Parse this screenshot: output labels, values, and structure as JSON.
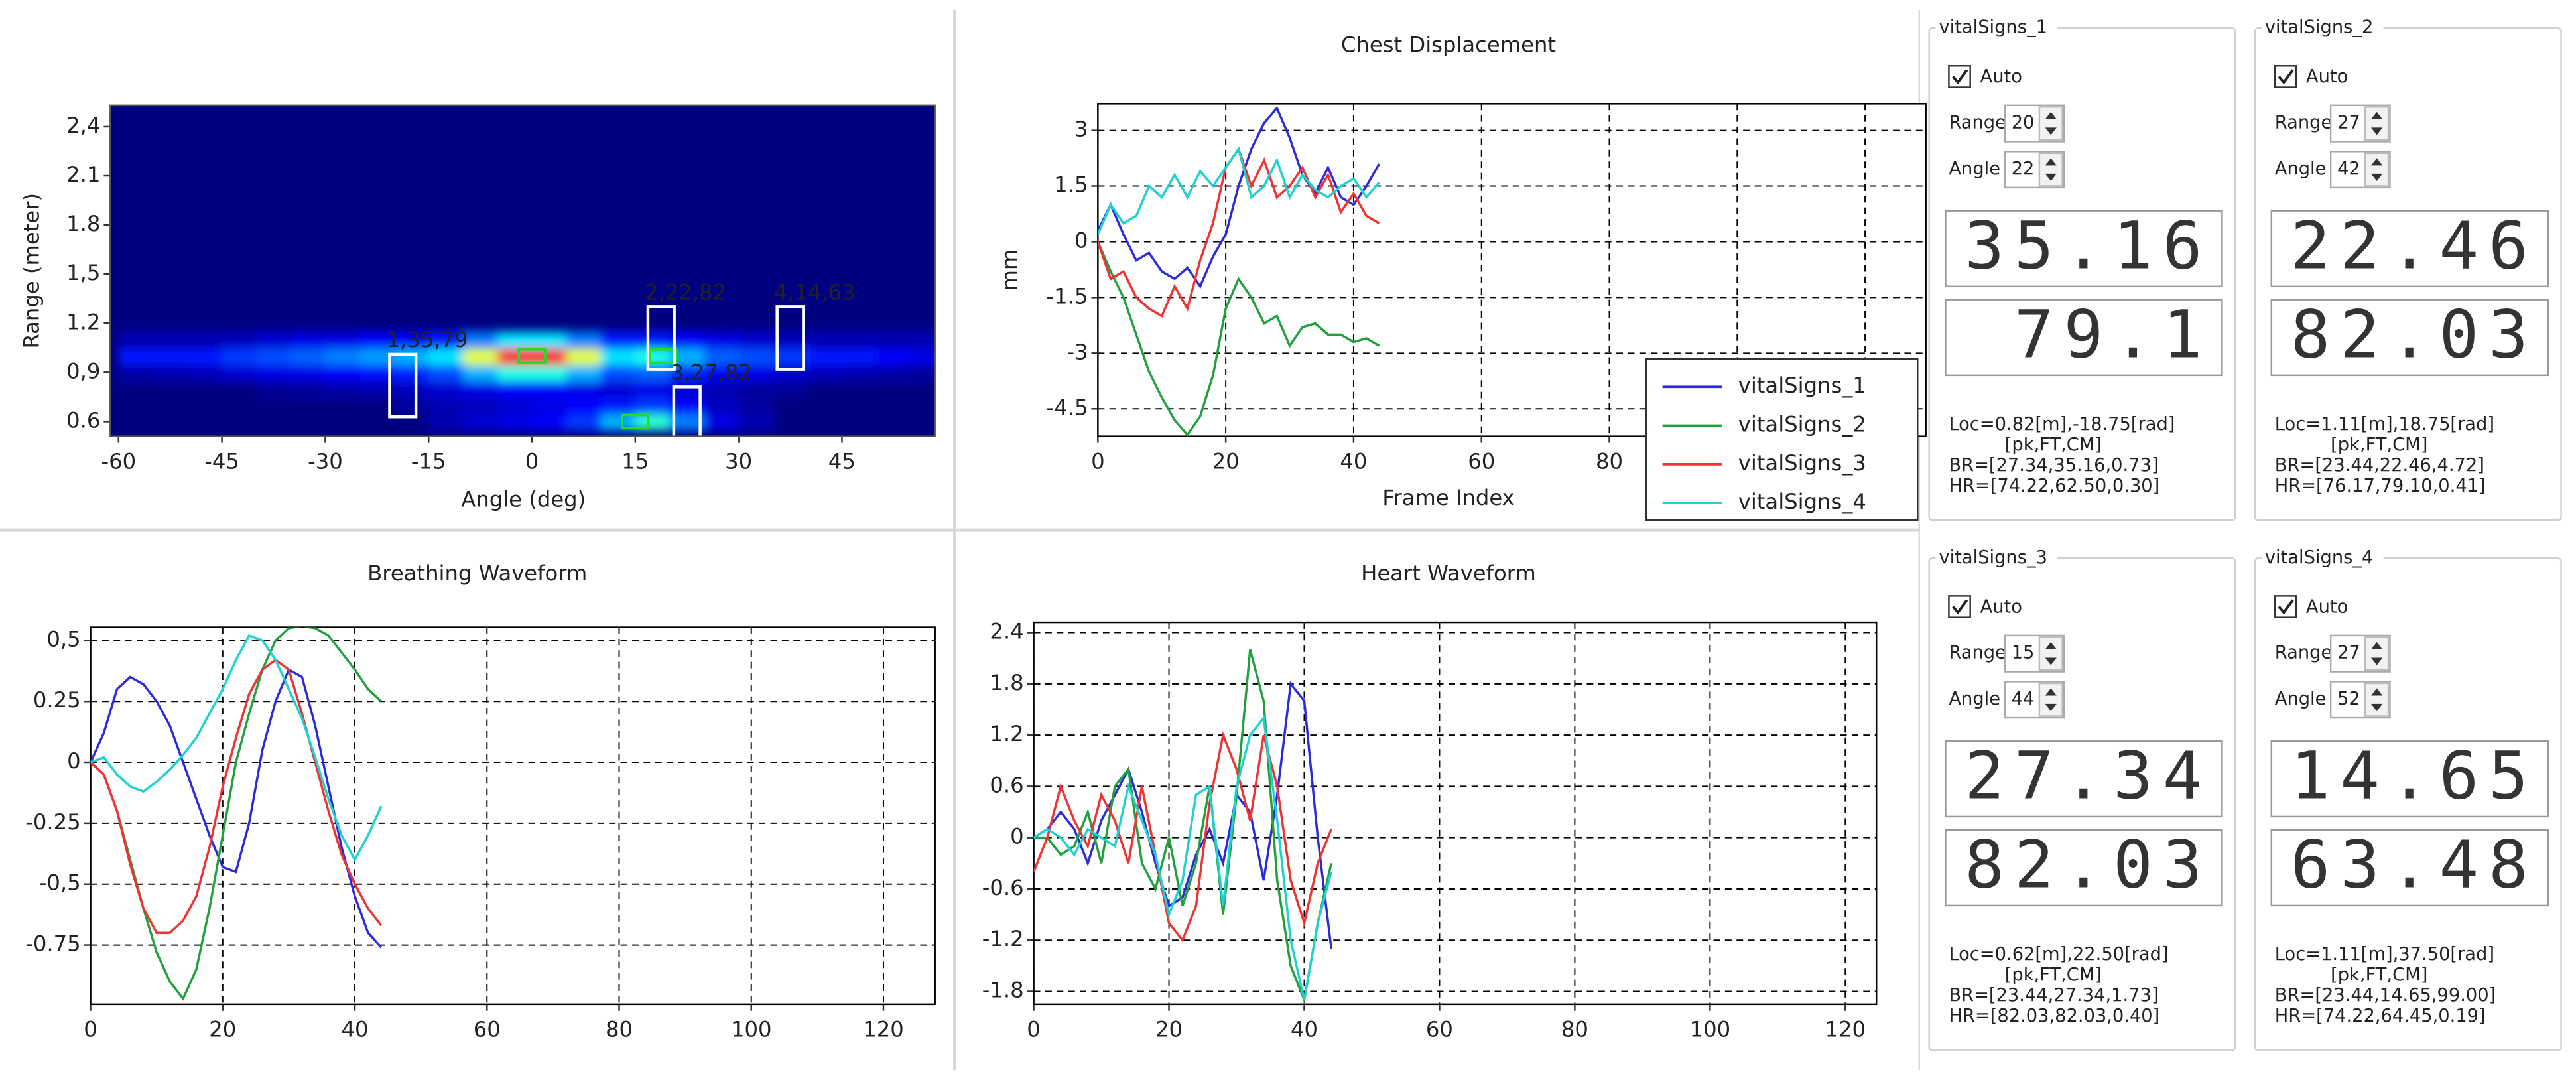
{
  "chart_data": [
    {
      "type": "heatmap",
      "xlabel": "Angle (deg)",
      "ylabel": "Range (meter)",
      "grid": false,
      "xlim": [
        -61.2,
        58.5
      ],
      "ylim": [
        0.51,
        2.53
      ],
      "xticks": [
        -60,
        -45,
        -30,
        -15,
        0,
        15,
        30,
        45
      ],
      "yticks": [
        {
          "value": 2.4,
          "label": "2,4"
        },
        2.1,
        1.8,
        {
          "value": 1.5,
          "label": "1,5"
        },
        1.2,
        {
          "value": 0.9,
          "label": "0,9"
        },
        0.6
      ],
      "x": [
        -57.5,
        -52.5,
        -47.5,
        -42.5,
        -37.5,
        -32.5,
        -27.5,
        -22.5,
        -17.5,
        -12.5,
        -7.5,
        -2.5,
        2.5,
        7.5,
        12.5,
        17.5,
        22.5,
        27.5,
        32.5,
        37.5,
        42.5,
        47.5,
        52.5,
        57.5
      ],
      "y": [
        0.6,
        0.7,
        0.8,
        0.9,
        1.0,
        1.1
      ],
      "z": [
        [
          0,
          0,
          0,
          0,
          0,
          0,
          0,
          0,
          0,
          0.05,
          0.08,
          0.1,
          0.12,
          0.18,
          0.3,
          0.42,
          0.25,
          0.1,
          0.05,
          0,
          0,
          0,
          0,
          0
        ],
        [
          0,
          0,
          0,
          0,
          0,
          0,
          0,
          0,
          0.03,
          0.05,
          0.06,
          0.08,
          0.1,
          0.12,
          0.15,
          0.18,
          0.12,
          0.06,
          0.03,
          0,
          0,
          0,
          0,
          0
        ],
        [
          0,
          0,
          0,
          0,
          0.02,
          0.03,
          0.04,
          0.05,
          0.06,
          0.08,
          0.1,
          0.12,
          0.12,
          0.1,
          0.08,
          0.1,
          0.08,
          0.05,
          0.03,
          0.02,
          0,
          0,
          0,
          0
        ],
        [
          0.04,
          0.05,
          0.06,
          0.08,
          0.1,
          0.1,
          0.12,
          0.14,
          0.16,
          0.2,
          0.3,
          0.4,
          0.4,
          0.3,
          0.2,
          0.22,
          0.16,
          0.12,
          0.1,
          0.08,
          0.06,
          0.05,
          0.04,
          0.03
        ],
        [
          0.15,
          0.15,
          0.15,
          0.18,
          0.2,
          0.22,
          0.25,
          0.28,
          0.3,
          0.35,
          0.6,
          0.85,
          0.85,
          0.6,
          0.35,
          0.4,
          0.3,
          0.22,
          0.2,
          0.18,
          0.15,
          0.15,
          0.12,
          0.1
        ],
        [
          0.05,
          0.05,
          0.05,
          0.06,
          0.08,
          0.1,
          0.1,
          0.12,
          0.12,
          0.15,
          0.25,
          0.35,
          0.35,
          0.25,
          0.15,
          0.15,
          0.12,
          0.1,
          0.08,
          0.06,
          0.05,
          0.05,
          0.05,
          0.05
        ]
      ],
      "targets": [
        {
          "label": "1,35,79",
          "x": -18.75,
          "y": 0.82
        },
        {
          "label": "2,22,82",
          "x": 18.75,
          "y": 1.11
        },
        {
          "label": "3,27,82",
          "x": 22.5,
          "y": 0.62
        },
        {
          "label": "4,14,63",
          "x": 37.5,
          "y": 1.11
        }
      ],
      "markers": [
        {
          "x": 0,
          "y": 1.0
        },
        {
          "x": 19,
          "y": 1.0
        },
        {
          "x": 15,
          "y": 0.6
        }
      ]
    },
    {
      "type": "line",
      "title": "Chest Displacement",
      "xlabel": "Frame Index",
      "ylabel": "mm",
      "grid": true,
      "legend": "lower right",
      "xlim": [
        0,
        129.5
      ],
      "ylim": [
        -5.24,
        3.72
      ],
      "xticks": [
        0,
        20,
        40,
        60,
        80,
        100,
        120
      ],
      "yticks": [
        3,
        1.5,
        0,
        -1.5,
        -3,
        -4.5
      ],
      "x": [
        0,
        2,
        4,
        6,
        8,
        10,
        12,
        14,
        16,
        18,
        20,
        22,
        24,
        26,
        28,
        30,
        32,
        34,
        36,
        38,
        40,
        42,
        44
      ],
      "series": [
        {
          "name": "vitalSigns_1",
          "color": "#2b2bdc",
          "values": [
            0.3,
            1.0,
            0.2,
            -0.5,
            -0.3,
            -0.8,
            -1.0,
            -0.7,
            -1.2,
            -0.4,
            0.2,
            1.5,
            2.5,
            3.2,
            3.6,
            2.8,
            1.8,
            1.3,
            2.0,
            1.2,
            1.0,
            1.5,
            2.1
          ]
        },
        {
          "name": "vitalSigns_2",
          "color": "#22a03c",
          "values": [
            0,
            -0.8,
            -1.5,
            -2.5,
            -3.5,
            -4.2,
            -4.8,
            -5.2,
            -4.7,
            -3.6,
            -1.8,
            -1.0,
            -1.5,
            -2.2,
            -2.0,
            -2.8,
            -2.3,
            -2.2,
            -2.5,
            -2.5,
            -2.7,
            -2.6,
            -2.8
          ]
        },
        {
          "name": "vitalSigns_3",
          "color": "#f03232",
          "values": [
            0,
            -1.0,
            -0.8,
            -1.5,
            -1.8,
            -2.0,
            -1.2,
            -1.8,
            -0.5,
            0.5,
            2.0,
            2.5,
            1.5,
            2.2,
            1.2,
            1.5,
            2.0,
            1.2,
            1.8,
            0.8,
            1.3,
            0.7,
            0.5
          ]
        },
        {
          "name": "vitalSigns_4",
          "color": "#1ed2d2",
          "values": [
            0.2,
            1.0,
            0.5,
            0.7,
            1.5,
            1.2,
            1.8,
            1.2,
            1.9,
            1.5,
            2.0,
            2.5,
            1.2,
            1.5,
            2.2,
            1.2,
            1.8,
            1.4,
            1.2,
            1.5,
            1.7,
            1.2,
            1.6
          ]
        }
      ]
    },
    {
      "type": "line",
      "title": "Breathing Waveform",
      "grid": true,
      "xlim": [
        0,
        127.8
      ],
      "ylim": [
        -0.993,
        0.554
      ],
      "xticks": [
        0,
        20,
        40,
        60,
        80,
        100,
        120
      ],
      "yticks": [
        {
          "value": 0.5,
          "label": "0,5"
        },
        0.25,
        0,
        -0.25,
        {
          "value": -0.5,
          "label": "-0,5"
        },
        -0.75
      ],
      "x": [
        0,
        2,
        4,
        6,
        8,
        10,
        12,
        14,
        16,
        18,
        20,
        22,
        24,
        26,
        28,
        30,
        32,
        34,
        36,
        38,
        40,
        42,
        44
      ],
      "series": [
        {
          "color": "#2b2bdc",
          "values": [
            0,
            0.12,
            0.3,
            0.35,
            0.32,
            0.25,
            0.15,
            0.0,
            -0.15,
            -0.3,
            -0.43,
            -0.45,
            -0.25,
            0.05,
            0.25,
            0.38,
            0.35,
            0.15,
            -0.1,
            -0.35,
            -0.55,
            -0.7,
            -0.76
          ]
        },
        {
          "color": "#22a03c",
          "values": [
            0,
            -0.05,
            -0.2,
            -0.4,
            -0.6,
            -0.78,
            -0.9,
            -0.97,
            -0.85,
            -0.6,
            -0.3,
            0.0,
            0.2,
            0.38,
            0.5,
            0.55,
            0.56,
            0.55,
            0.52,
            0.45,
            0.38,
            0.3,
            0.25
          ]
        },
        {
          "color": "#f03232",
          "values": [
            0,
            -0.05,
            -0.2,
            -0.42,
            -0.6,
            -0.7,
            -0.7,
            -0.65,
            -0.55,
            -0.35,
            -0.1,
            0.1,
            0.28,
            0.38,
            0.42,
            0.38,
            0.2,
            0.0,
            -0.2,
            -0.38,
            -0.5,
            -0.6,
            -0.67
          ]
        },
        {
          "color": "#1ed2d2",
          "values": [
            0,
            0.02,
            -0.05,
            -0.1,
            -0.12,
            -0.08,
            -0.03,
            0.03,
            0.1,
            0.2,
            0.3,
            0.42,
            0.52,
            0.5,
            0.42,
            0.3,
            0.18,
            0.02,
            -0.15,
            -0.3,
            -0.4,
            -0.3,
            -0.18
          ]
        }
      ]
    },
    {
      "type": "line",
      "title": "Heart Waveform",
      "grid": true,
      "xlim": [
        0,
        124.6
      ],
      "ylim": [
        -1.95,
        2.52
      ],
      "xticks": [
        0,
        20,
        40,
        60,
        80,
        100,
        120
      ],
      "yticks": [
        2.4,
        1.8,
        1.2,
        0.6,
        0,
        -0.6,
        -1.2,
        -1.8
      ],
      "x": [
        0,
        2,
        4,
        6,
        8,
        10,
        12,
        14,
        16,
        18,
        20,
        22,
        24,
        26,
        28,
        30,
        32,
        34,
        36,
        38,
        40,
        42,
        44
      ],
      "series": [
        {
          "color": "#2b2bdc",
          "values": [
            0,
            0.1,
            0.3,
            0.1,
            -0.3,
            0.2,
            0.5,
            0.8,
            0.3,
            -0.3,
            -0.8,
            -0.7,
            -0.2,
            0.1,
            -0.3,
            0.5,
            0.3,
            -0.5,
            0.5,
            1.8,
            1.6,
            0,
            -1.3
          ]
        },
        {
          "color": "#22a03c",
          "values": [
            0,
            0,
            -0.2,
            -0.1,
            0.3,
            -0.3,
            0.6,
            0.8,
            -0.3,
            -0.6,
            0,
            -0.8,
            -0.3,
            0.6,
            -0.9,
            0.5,
            2.2,
            1.6,
            -0.5,
            -1.5,
            -1.9,
            -1.0,
            -0.3
          ]
        },
        {
          "color": "#f03232",
          "values": [
            -0.4,
            0,
            0.6,
            0.2,
            -0.1,
            0.5,
            0.2,
            -0.3,
            0.6,
            -0.2,
            -1.0,
            -1.2,
            -0.8,
            0.4,
            1.2,
            0.8,
            0.2,
            1.2,
            0.6,
            -0.5,
            -1.0,
            -0.3,
            0.1
          ]
        },
        {
          "color": "#1ed2d2",
          "values": [
            0,
            0.1,
            0,
            -0.2,
            0.1,
            0,
            -0.1,
            0.6,
            0.2,
            -0.2,
            -0.9,
            -0.5,
            0.5,
            0.6,
            -0.8,
            0.6,
            1.2,
            1.4,
            0.2,
            -1.2,
            -1.9,
            -1.0,
            -0.4
          ]
        }
      ]
    }
  ],
  "panels": [
    {
      "title": "vitalSigns_1",
      "auto": "Auto",
      "checked": true,
      "range_label": "Range",
      "range": 20,
      "angle_label": "Angle",
      "angle": 22,
      "lcd": [
        "35.16",
        "79.1"
      ],
      "info": [
        "Loc=0.82[m],-18.75[rad]",
        "[pk,FT,CM]",
        "BR=[27.34,35.16,0.73]",
        "HR=[74.22,62.50,0.30]"
      ]
    },
    {
      "title": "vitalSigns_2",
      "auto": "Auto",
      "checked": true,
      "range_label": "Range",
      "range": 27,
      "angle_label": "Angle",
      "angle": 42,
      "lcd": [
        "22.46",
        "82.03"
      ],
      "info": [
        "Loc=1.11[m],18.75[rad]",
        "[pk,FT,CM]",
        "BR=[23.44,22.46,4.72]",
        "HR=[76.17,79.10,0.41]"
      ]
    },
    {
      "title": "vitalSigns_3",
      "auto": "Auto",
      "checked": true,
      "range_label": "Range",
      "range": 15,
      "angle_label": "Angle",
      "angle": 44,
      "lcd": [
        "27.34",
        "82.03"
      ],
      "info": [
        "Loc=0.62[m],22.50[rad]",
        "[pk,FT,CM]",
        "BR=[23.44,27.34,1.73]",
        "HR=[82.03,82.03,0.40]"
      ]
    },
    {
      "title": "vitalSigns_4",
      "auto": "Auto",
      "checked": true,
      "range_label": "Range",
      "range": 27,
      "angle_label": "Angle",
      "angle": 52,
      "lcd": [
        "14.65",
        "63.48"
      ],
      "info": [
        "Loc=1.11[m],37.50[rad]",
        "[pk,FT,CM]",
        "BR=[23.44,14.65,99.00]",
        "HR=[74.22,64.45,0.19]"
      ]
    }
  ]
}
